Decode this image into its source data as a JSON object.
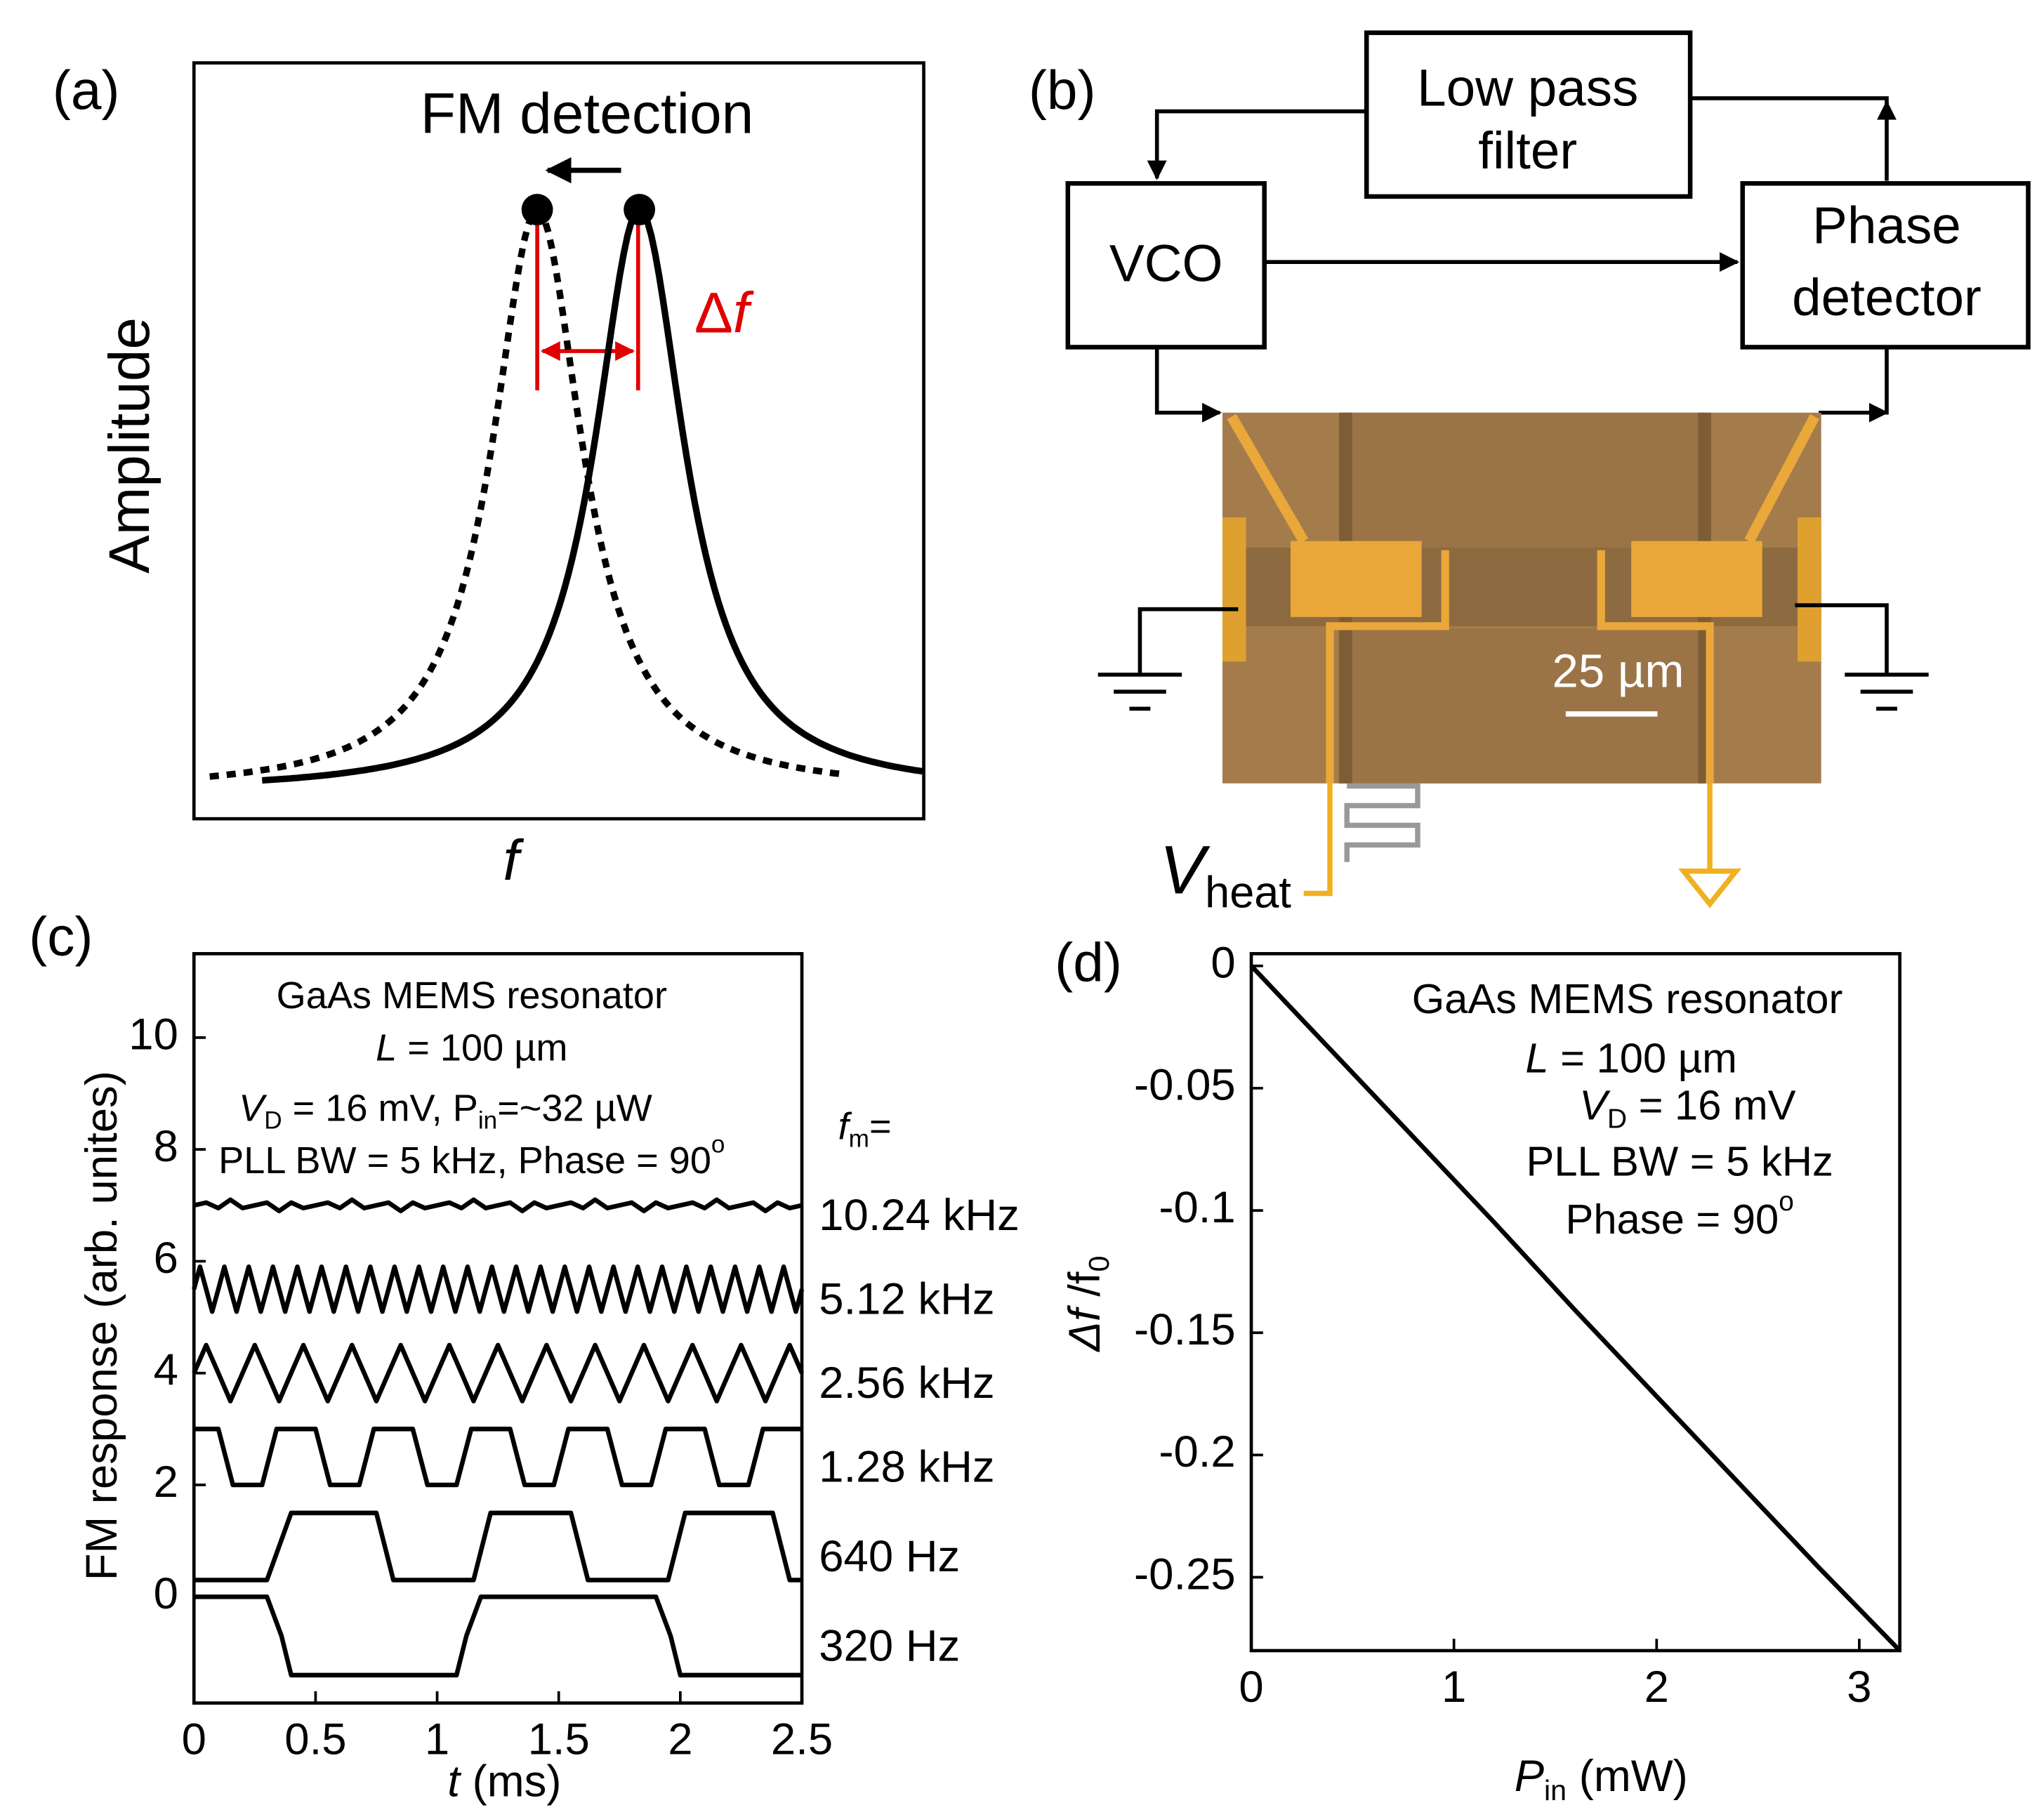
{
  "panel_labels": [
    "(a)",
    "(b)",
    "(c)",
    "(d)"
  ],
  "diagram_a": {
    "title": "FM detection",
    "x_label": [
      {
        "text": "f",
        "style": "italic"
      }
    ],
    "y_label": "Amplitude",
    "shift_label": [
      "Δ",
      {
        "text": "f",
        "style": "italic"
      }
    ]
  },
  "diagram_b": {
    "blocks": [
      [
        "Low pass",
        "filter"
      ],
      [
        "VCO"
      ],
      [
        "Phase",
        "detector"
      ]
    ],
    "scale_bar": "25 µm",
    "heater_label": [
      {
        "text": "V",
        "style": "italic"
      },
      {
        "text": "heat",
        "style": "sub"
      }
    ]
  },
  "chart_data": [
    {
      "type": "line",
      "x_label": [
        {
          "text": "t",
          "style": "italic"
        },
        " (ms)"
      ],
      "y_label": "FM response (arb. unites)",
      "annotations": [
        "GaAs MEMS resonator",
        [
          {
            "text": "L",
            "style": "italic"
          },
          " = 100 µm"
        ],
        [
          {
            "text": "V",
            "style": "italic"
          },
          {
            "text": "D",
            "style": "sub"
          },
          " = 16 mV, P",
          {
            "text": "in",
            "style": "sub"
          },
          "=~32 µW"
        ],
        [
          "PLL BW = 5 kHz, Phase = 90",
          {
            "text": "o",
            "style": "sup"
          }
        ],
        [
          {
            "text": "f",
            "style": "italic"
          },
          {
            "text": "m",
            "style": "sub"
          },
          "="
        ]
      ],
      "xlim": [
        0,
        2.5
      ],
      "ylim": [
        -1.9,
        11.5
      ],
      "xticks": [
        0,
        0.5,
        1,
        1.5,
        2,
        2.5
      ],
      "yticks": [
        0,
        2,
        4,
        6,
        8,
        10
      ],
      "grid": false,
      "series": [
        {
          "name": "10.24 kHz",
          "color": "#000000",
          "x": [
            0,
            0.05,
            0.1,
            0.15,
            0.2,
            0.25,
            0.3,
            0.35,
            0.4,
            0.45,
            0.5,
            0.55,
            0.6,
            0.65,
            0.7,
            0.75,
            0.8,
            0.85,
            0.9,
            0.95,
            1,
            1.05,
            1.1,
            1.15,
            1.2,
            1.25,
            1.3,
            1.35,
            1.4,
            1.45,
            1.5,
            1.55,
            1.6,
            1.65,
            1.7,
            1.75,
            1.8,
            1.85,
            1.9,
            1.95,
            2,
            2.05,
            2.1,
            2.15,
            2.2,
            2.25,
            2.3,
            2.35,
            2.4,
            2.45,
            2.5
          ],
          "values": [
            7,
            7.05,
            6.95,
            7.1,
            6.95,
            7,
            7.05,
            6.9,
            7.05,
            6.95,
            7,
            7.05,
            6.95,
            7.1,
            6.95,
            7,
            7.05,
            6.9,
            7.05,
            6.95,
            7,
            7.05,
            6.95,
            7.1,
            6.95,
            7,
            7.05,
            6.9,
            7.05,
            6.95,
            7,
            7.05,
            6.95,
            7.1,
            6.95,
            7,
            7.05,
            6.9,
            7.05,
            6.95,
            7,
            7.05,
            6.95,
            7.1,
            6.95,
            7,
            7.05,
            6.9,
            7.05,
            6.95,
            7
          ]
        },
        {
          "name": "5.12 kHz",
          "color": "#000000",
          "x": [
            0,
            0.025,
            0.05,
            0.075,
            0.1,
            0.125,
            0.15,
            0.175,
            0.2,
            0.225,
            0.25,
            0.275,
            0.3,
            0.325,
            0.35,
            0.375,
            0.4,
            0.425,
            0.45,
            0.475,
            0.5,
            0.525,
            0.55,
            0.575,
            0.6,
            0.625,
            0.65,
            0.675,
            0.7,
            0.725,
            0.75,
            0.775,
            0.8,
            0.825,
            0.85,
            0.875,
            0.9,
            0.925,
            0.95,
            0.975,
            1,
            1.025,
            1.05,
            1.075,
            1.1,
            1.125,
            1.15,
            1.175,
            1.2,
            1.225,
            1.25,
            1.275,
            1.3,
            1.325,
            1.35,
            1.375,
            1.4,
            1.425,
            1.45,
            1.475,
            1.5,
            1.525,
            1.55,
            1.575,
            1.6,
            1.625,
            1.65,
            1.675,
            1.7,
            1.725,
            1.75,
            1.775,
            1.8,
            1.825,
            1.85,
            1.875,
            1.9,
            1.925,
            1.95,
            1.975,
            2,
            2.025,
            2.05,
            2.075,
            2.1,
            2.125,
            2.15,
            2.175,
            2.2,
            2.225,
            2.25,
            2.275,
            2.3,
            2.325,
            2.35,
            2.375,
            2.4,
            2.425,
            2.45,
            2.475,
            2.5
          ],
          "values": [
            5.5,
            5.9,
            5.5,
            5.1,
            5.5,
            5.9,
            5.5,
            5.1,
            5.5,
            5.9,
            5.5,
            5.1,
            5.5,
            5.9,
            5.5,
            5.1,
            5.5,
            5.9,
            5.5,
            5.1,
            5.5,
            5.9,
            5.5,
            5.1,
            5.5,
            5.9,
            5.5,
            5.1,
            5.5,
            5.9,
            5.5,
            5.1,
            5.5,
            5.9,
            5.5,
            5.1,
            5.5,
            5.9,
            5.5,
            5.1,
            5.5,
            5.9,
            5.5,
            5.1,
            5.5,
            5.9,
            5.5,
            5.1,
            5.5,
            5.9,
            5.5,
            5.1,
            5.5,
            5.9,
            5.5,
            5.1,
            5.5,
            5.9,
            5.5,
            5.1,
            5.5,
            5.9,
            5.5,
            5.1,
            5.5,
            5.9,
            5.5,
            5.1,
            5.5,
            5.9,
            5.5,
            5.1,
            5.5,
            5.9,
            5.5,
            5.1,
            5.5,
            5.9,
            5.5,
            5.1,
            5.5,
            5.9,
            5.5,
            5.1,
            5.5,
            5.9,
            5.5,
            5.1,
            5.5,
            5.9,
            5.5,
            5.1,
            5.5,
            5.9,
            5.5,
            5.1,
            5.5,
            5.9,
            5.5,
            5.1,
            5.5
          ]
        },
        {
          "name": "2.56 kHz",
          "color": "#000000",
          "x": [
            0,
            0.05,
            0.1,
            0.15,
            0.2,
            0.25,
            0.3,
            0.35,
            0.4,
            0.45,
            0.5,
            0.55,
            0.6,
            0.65,
            0.7,
            0.75,
            0.8,
            0.85,
            0.9,
            0.95,
            1,
            1.05,
            1.1,
            1.15,
            1.2,
            1.25,
            1.3,
            1.35,
            1.4,
            1.45,
            1.5,
            1.55,
            1.6,
            1.65,
            1.7,
            1.75,
            1.8,
            1.85,
            1.9,
            1.95,
            2,
            2.05,
            2.1,
            2.15,
            2.2,
            2.25,
            2.3,
            2.35,
            2.4,
            2.45,
            2.5
          ],
          "values": [
            4,
            4.5,
            4,
            3.5,
            4,
            4.5,
            4,
            3.5,
            4,
            4.5,
            4,
            3.5,
            4,
            4.5,
            4,
            3.5,
            4,
            4.5,
            4,
            3.5,
            4,
            4.5,
            4,
            3.5,
            4,
            4.5,
            4,
            3.5,
            4,
            4.5,
            4,
            3.5,
            4,
            4.5,
            4,
            3.5,
            4,
            4.5,
            4,
            3.5,
            4,
            4.5,
            4,
            3.5,
            4,
            4.5,
            4,
            3.5,
            4,
            4.5,
            4
          ]
        },
        {
          "name": "1.28 kHz",
          "color": "#000000",
          "x": [
            0,
            0.1,
            0.16,
            0.28,
            0.34,
            0.5,
            0.56,
            0.68,
            0.74,
            0.9,
            0.96,
            1.08,
            1.14,
            1.3,
            1.36,
            1.48,
            1.54,
            1.7,
            1.76,
            1.88,
            1.94,
            2.1,
            2.16,
            2.28,
            2.34,
            2.5
          ],
          "values": [
            3,
            3,
            2,
            2,
            3,
            3,
            2,
            2,
            3,
            3,
            2,
            2,
            3,
            3,
            2,
            2,
            3,
            3,
            2,
            2,
            3,
            3,
            2,
            2,
            3,
            3
          ]
        },
        {
          "name": "640 Hz",
          "color": "#000000",
          "x": [
            0,
            0.3,
            0.4,
            0.75,
            0.82,
            1.15,
            1.22,
            1.55,
            1.62,
            1.95,
            2.02,
            2.38,
            2.45,
            2.5
          ],
          "values": [
            0.3,
            0.3,
            1.5,
            1.5,
            0.3,
            0.3,
            1.5,
            1.5,
            0.3,
            0.3,
            1.5,
            1.5,
            0.3,
            0.3
          ]
        },
        {
          "name": "320 Hz",
          "color": "#000000",
          "x": [
            0,
            0.3,
            0.36,
            0.4,
            1.08,
            1.12,
            1.18,
            1.9,
            1.96,
            2,
            2.5
          ],
          "values": [
            0,
            0,
            -0.7,
            -1.4,
            -1.4,
            -0.7,
            0,
            0,
            -0.7,
            -1.4,
            -1.4
          ]
        }
      ]
    },
    {
      "type": "line",
      "x_label": [
        {
          "text": "P",
          "style": "italic"
        },
        {
          "text": "in",
          "style": "sub"
        },
        " (mW)"
      ],
      "y_label": [
        {
          "text": "Δf",
          "style": "italic"
        },
        " /f",
        {
          "text": "0",
          "style": "sub"
        }
      ],
      "annotations": [
        "GaAs MEMS resonator",
        [
          {
            "text": "L",
            "style": "italic"
          },
          " = 100 µm"
        ],
        [
          {
            "text": "V",
            "style": "italic"
          },
          {
            "text": "D",
            "style": "sub"
          },
          " = 16 mV"
        ],
        "PLL BW = 5 kHz",
        [
          "Phase = 90",
          {
            "text": "o",
            "style": "sup"
          }
        ]
      ],
      "xlim": [
        0,
        3.2
      ],
      "ylim": [
        -0.28,
        0.005
      ],
      "xticks": [
        0,
        1,
        2,
        3
      ],
      "yticks": [
        0,
        -0.05,
        -0.1,
        -0.15,
        -0.2,
        -0.25
      ],
      "grid": false,
      "series": [
        {
          "color": "#000000",
          "x": [
            0,
            0.4,
            0.8,
            1.2,
            1.6,
            2,
            2.4,
            2.8,
            3.2
          ],
          "values": [
            0,
            -0.035,
            -0.07,
            -0.105,
            -0.141,
            -0.176,
            -0.211,
            -0.246,
            -0.28
          ]
        }
      ]
    }
  ]
}
